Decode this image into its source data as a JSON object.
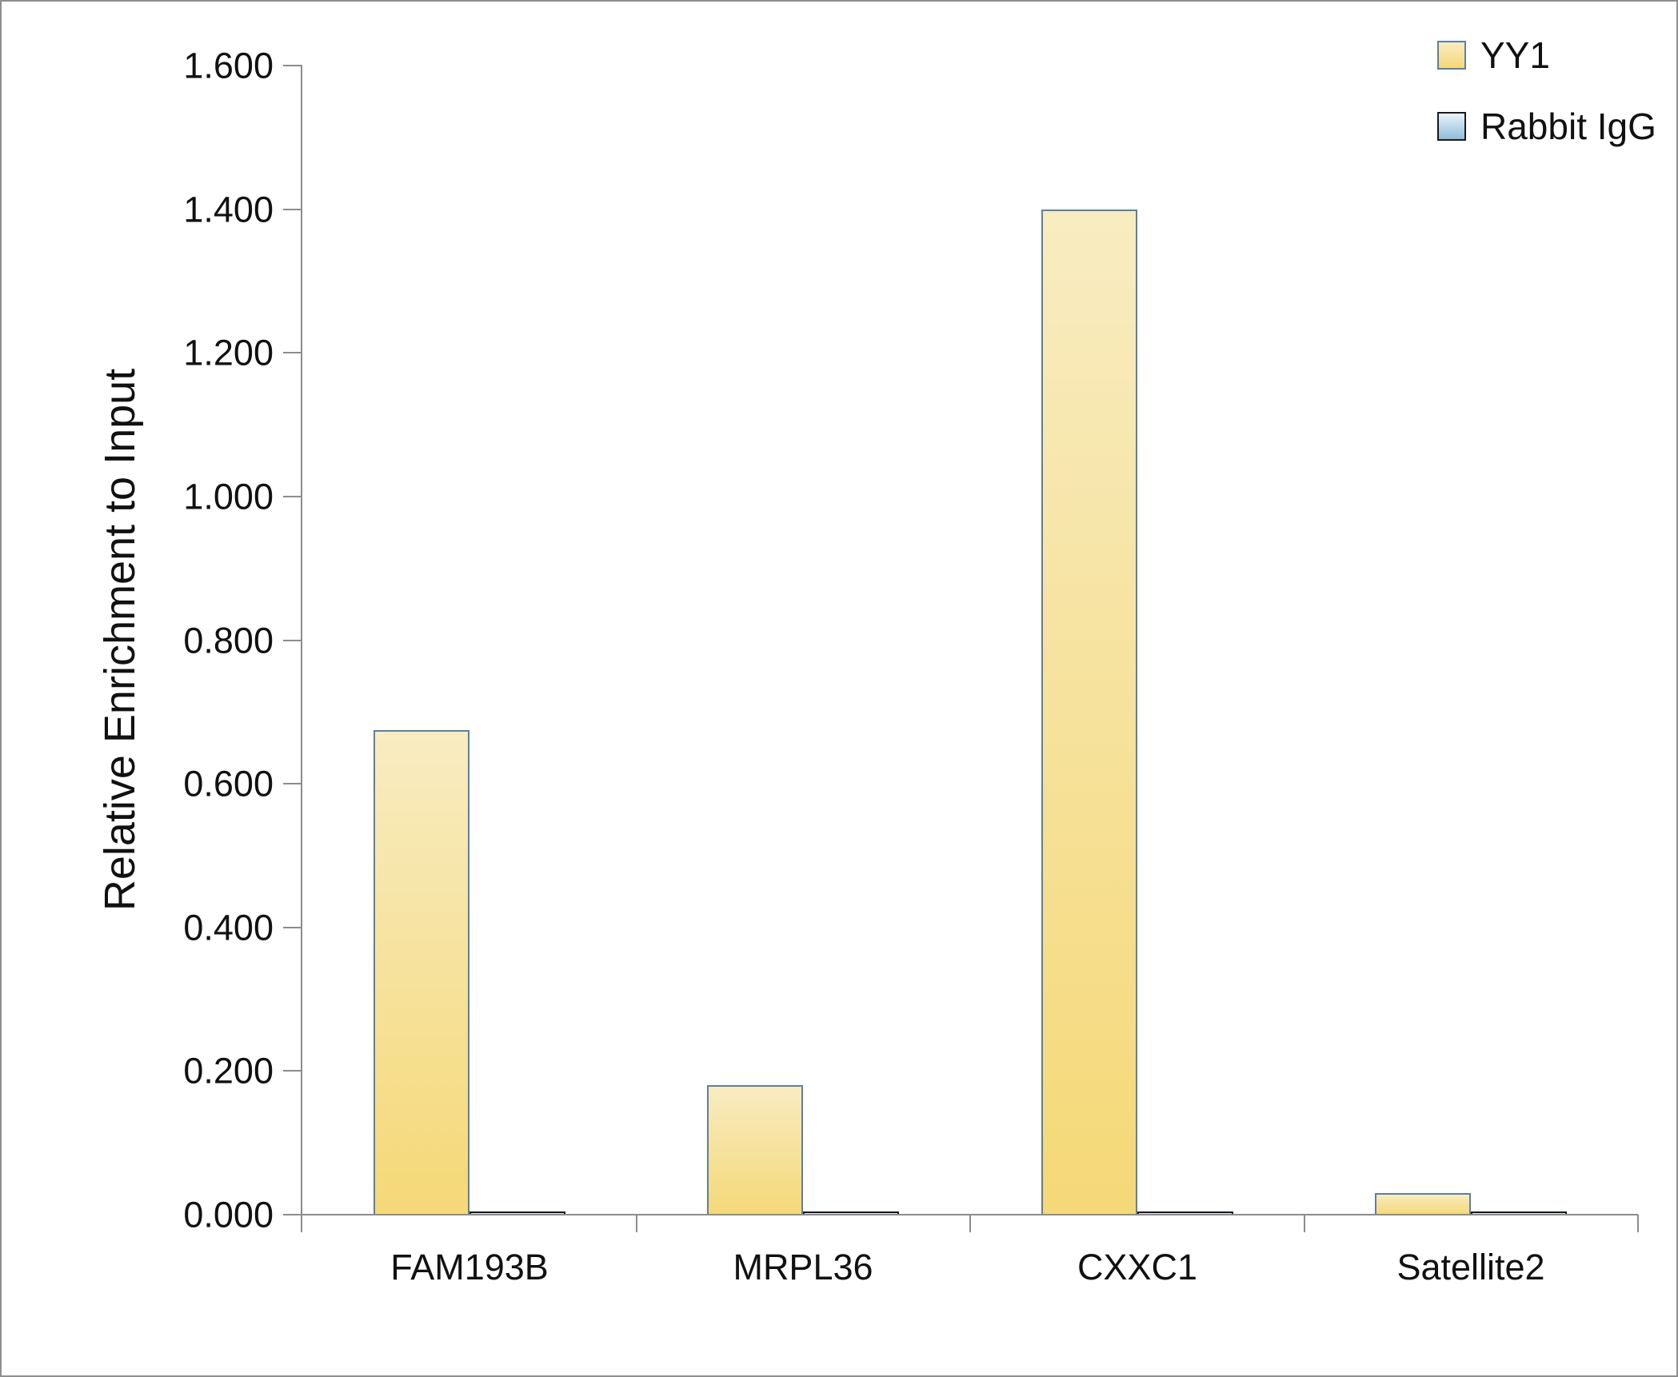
{
  "figure": {
    "background": "#ffffff",
    "frame_border_color": "#8f8f8f",
    "axis_color": "#8c8c8c",
    "text_color": "#111111"
  },
  "chart_data": {
    "type": "bar",
    "title": "",
    "xlabel": "",
    "ylabel": "Relative Enrichment to Input",
    "categories": [
      "FAM193B",
      "MRPL36",
      "CXXC1",
      "Satellite2"
    ],
    "series": [
      {
        "name": "YY1",
        "values": [
          0.675,
          0.18,
          1.4,
          0.03
        ],
        "fill_top": "#F8ECC1",
        "fill_bottom": "#F5D877",
        "border": "#5B7FA3"
      },
      {
        "name": "Rabbit IgG",
        "values": [
          0.005,
          0.004,
          0.005,
          0.005
        ],
        "fill_top": "#EAF3FA",
        "fill_bottom": "#8FBCDB",
        "border": "#1A1A1A"
      }
    ],
    "ylim": [
      0,
      1.6
    ],
    "ytick_step": 0.2,
    "ytick_labels": [
      "0.000",
      "0.200",
      "0.400",
      "0.600",
      "0.800",
      "1.000",
      "1.200",
      "1.400",
      "1.600"
    ],
    "grid": false,
    "legend_position": "top-right"
  }
}
